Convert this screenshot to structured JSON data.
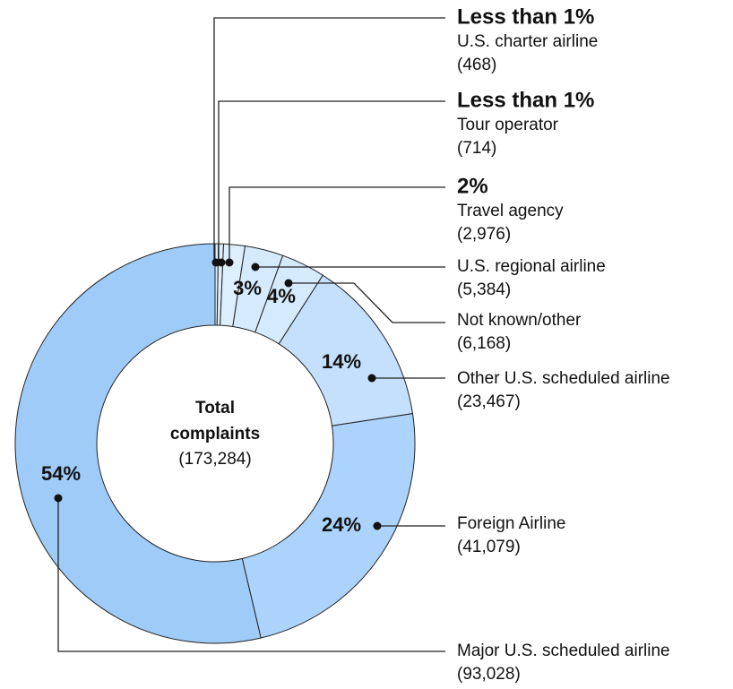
{
  "chart_data": {
    "type": "pie",
    "categories": [
      "U.S. charter airline",
      "Tour operator",
      "Travel agency",
      "U.S. regional airline",
      "Not known/other",
      "Other U.S. scheduled airline",
      "Foreign Airline",
      "Major U.S. scheduled airline"
    ],
    "values": [
      468,
      714,
      2976,
      5384,
      6168,
      23467,
      41079,
      93028
    ],
    "value_labels": [
      "(468)",
      "(714)",
      "(2,976)",
      "(5,384)",
      "(6,168)",
      "(23,467)",
      "(41,079)",
      "(93,028)"
    ],
    "percent_labels": [
      "Less than 1%",
      "Less than 1%",
      "2%",
      "3%",
      "4%",
      "14%",
      "24%",
      "54%"
    ],
    "colors": [
      "#ddeefd",
      "#ddeefd",
      "#ddeefd",
      "#d6eafd",
      "#d6eafd",
      "#c4e0fc",
      "#acd3fb",
      "#9fcbf8"
    ],
    "center_title": [
      "Total",
      "complaints"
    ],
    "center_value_label": "(173,284)"
  }
}
